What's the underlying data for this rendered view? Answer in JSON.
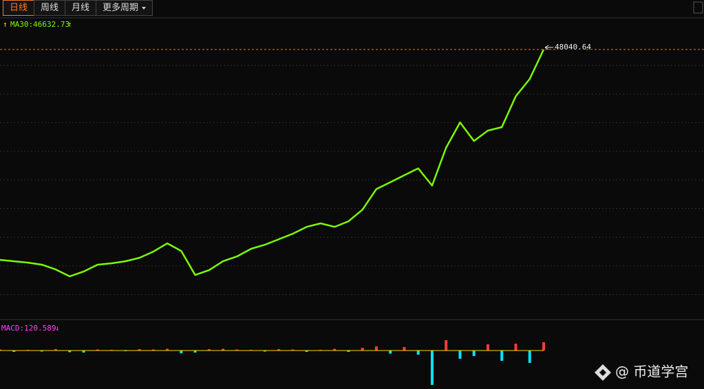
{
  "toolbar": {
    "tabs": [
      "日线",
      "周线",
      "月线",
      "更多周期"
    ]
  },
  "chart_data": {
    "type": "line",
    "indicator_label": "MA30:46632.73",
    "indicator_arrows": [
      "↑",
      "↑"
    ],
    "values": [
      10430,
      10190,
      9940,
      9570,
      8710,
      7480,
      8340,
      9570,
      9820,
      10190,
      10800,
      11910,
      13380,
      12030,
      7730,
      8590,
      10190,
      11050,
      12400,
      13140,
      14120,
      15100,
      16330,
      16950,
      16330,
      17320,
      19400,
      23090,
      24320,
      25550,
      26780,
      23710,
      30470,
      35010,
      31690,
      33540,
      34150,
      39680,
      42760,
      48040.64
    ],
    "color": "#7cfc00",
    "ylim": [
      0,
      53200
    ],
    "last_price": 48040.64,
    "macd": {
      "label": "MACD:120.589",
      "arrow": "↓",
      "values": [
        15,
        -20,
        10,
        -15,
        20,
        -25,
        -30,
        15,
        10,
        -10,
        20,
        15,
        25,
        -40,
        -30,
        20,
        25,
        15,
        10,
        -15,
        20,
        15,
        -20,
        10,
        25,
        -20,
        40,
        60,
        -45,
        50,
        -60,
        -500,
        150,
        -120,
        -80,
        90,
        -150,
        100,
        -180,
        120.589
      ],
      "ylim": [
        -500,
        500
      ],
      "colors": {
        "up": "#ff3b3b",
        "down": "#00e5ff"
      }
    }
  },
  "watermark": "@ 币道学宫"
}
